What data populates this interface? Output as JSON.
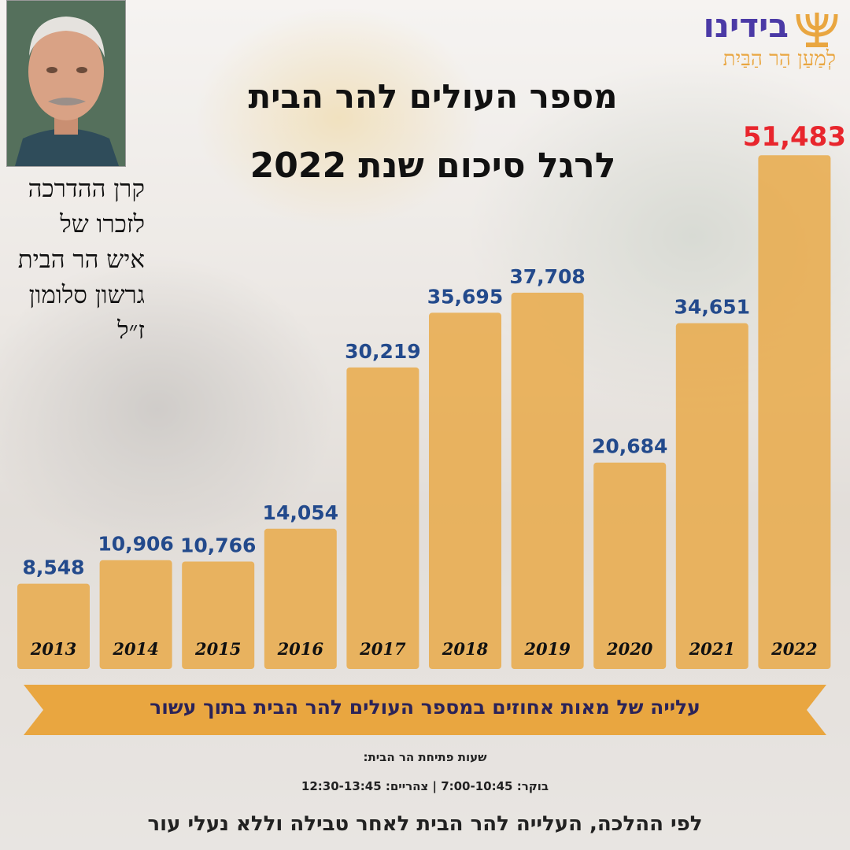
{
  "title": {
    "line1": "מספר העולים להר הבית",
    "line2": "לרגל סיכום שנת 2022"
  },
  "logo": {
    "main": "בידינו",
    "sub": "לְמַעַן הַר הַבַּיִת"
  },
  "tribute": {
    "lines": [
      "קרן ההדרכה",
      "לזכרו של",
      "איש הר הבית",
      "גרשון סלומון",
      "ז״ל"
    ]
  },
  "banner": {
    "text": "עלייה של מאות אחוזים במספר העולים להר הבית בתוך עשור"
  },
  "hours": {
    "title": "שעות פתיחת הר הבית:",
    "text": "בוקר: 7:00-10:45 | צהריים: 12:30-13:45"
  },
  "footer": {
    "text": "לפי ההלכה, העלייה להר הבית לאחר טבילה וללא נעלי עור"
  },
  "colors": {
    "bar": "#e9a640",
    "value_label": "#234a8c",
    "highlight_label": "#e8262d",
    "banner": "#e9a640",
    "logo_purple": "#4b3aa6"
  },
  "chart_data": {
    "type": "bar",
    "categories": [
      "2013",
      "2014",
      "2015",
      "2016",
      "2017",
      "2018",
      "2019",
      "2020",
      "2021",
      "2022"
    ],
    "values": [
      8548,
      10906,
      10766,
      14054,
      30219,
      35695,
      37708,
      20684,
      34651,
      51483
    ],
    "value_labels": [
      "8,548",
      "10,906",
      "10,766",
      "14,054",
      "30,219",
      "35,695",
      "37,708",
      "20,684",
      "34,651",
      "51,483"
    ],
    "highlight_index": 9,
    "ylim": [
      0,
      53000
    ]
  }
}
